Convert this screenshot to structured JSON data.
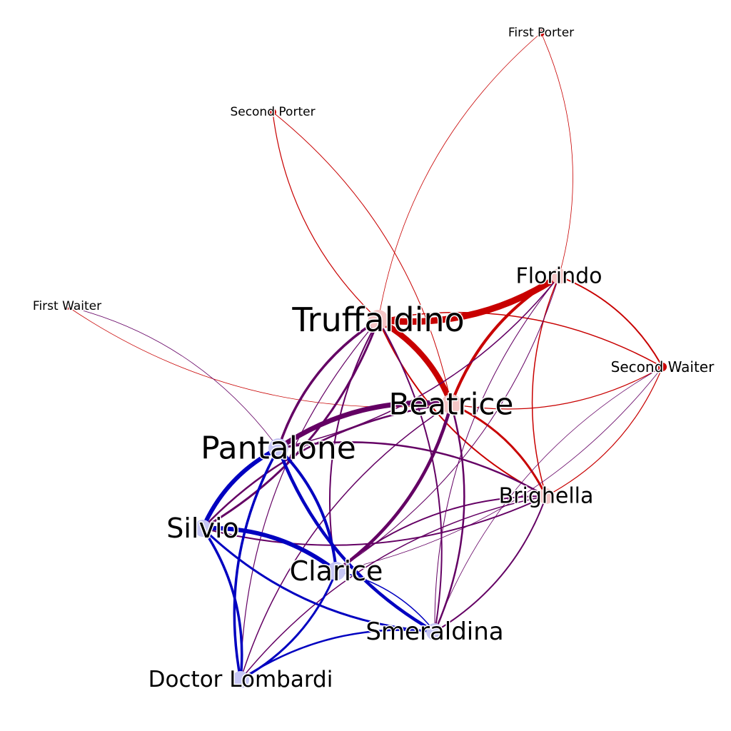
{
  "colors": {
    "red": "#c80000",
    "blue": "#0000c0",
    "purple": "#640064",
    "node_red": "#f4c6c6",
    "node_blue": "#c6c6f4",
    "node_mixed": "#dcc6e8"
  },
  "nodes": [
    {
      "id": "truffaldino",
      "label": "Truffaldino",
      "color": "node_red"
    },
    {
      "id": "beatrice",
      "label": "Beatrice",
      "color": "node_red"
    },
    {
      "id": "pantalone",
      "label": "Pantalone",
      "color": "node_blue"
    },
    {
      "id": "florindo",
      "label": "Florindo",
      "color": "node_red"
    },
    {
      "id": "brighella",
      "label": "Brighella",
      "color": "node_red"
    },
    {
      "id": "silvio",
      "label": "Silvio",
      "color": "node_blue"
    },
    {
      "id": "clarice",
      "label": "Clarice",
      "color": "node_blue"
    },
    {
      "id": "smeraldina",
      "label": "Smeraldina",
      "color": "node_blue"
    },
    {
      "id": "lombardi",
      "label": "Doctor Lombardi",
      "color": "node_blue"
    },
    {
      "id": "first_porter",
      "label": "First Porter",
      "color": "red"
    },
    {
      "id": "second_porter",
      "label": "Second Porter",
      "color": "red"
    },
    {
      "id": "first_waiter",
      "label": "First Waiter",
      "color": "red"
    },
    {
      "id": "second_waiter",
      "label": "Second Waiter",
      "color": "red"
    }
  ],
  "edges": [
    {
      "source": "truffaldino",
      "target": "florindo",
      "color": "red",
      "weight": 9
    },
    {
      "source": "truffaldino",
      "target": "beatrice",
      "color": "red",
      "weight": 8
    },
    {
      "source": "florindo",
      "target": "beatrice",
      "color": "red",
      "weight": 4
    },
    {
      "source": "florindo",
      "target": "second_waiter",
      "color": "red",
      "weight": 2
    },
    {
      "source": "florindo",
      "target": "brighella",
      "color": "red",
      "weight": 1.5
    },
    {
      "source": "truffaldino",
      "target": "second_waiter",
      "color": "red",
      "weight": 1.5
    },
    {
      "source": "beatrice",
      "target": "second_waiter",
      "color": "red",
      "weight": 1.2
    },
    {
      "source": "beatrice",
      "target": "brighella",
      "color": "red",
      "weight": 3
    },
    {
      "source": "truffaldino",
      "target": "brighella",
      "color": "red",
      "weight": 2
    },
    {
      "source": "truffaldino",
      "target": "first_porter",
      "color": "red",
      "weight": 0.8
    },
    {
      "source": "florindo",
      "target": "first_porter",
      "color": "red",
      "weight": 0.8
    },
    {
      "source": "truffaldino",
      "target": "second_porter",
      "color": "red",
      "weight": 1.2
    },
    {
      "source": "beatrice",
      "target": "second_porter",
      "color": "red",
      "weight": 1
    },
    {
      "source": "beatrice",
      "target": "first_waiter",
      "color": "red",
      "weight": 0.8
    },
    {
      "source": "brighella",
      "target": "second_waiter",
      "color": "red",
      "weight": 1.2
    },
    {
      "source": "pantalone",
      "target": "beatrice",
      "color": "purple",
      "weight": 7
    },
    {
      "source": "truffaldino",
      "target": "pantalone",
      "color": "purple",
      "weight": 3.5
    },
    {
      "source": "truffaldino",
      "target": "silvio",
      "color": "purple",
      "weight": 3
    },
    {
      "source": "truffaldino",
      "target": "clarice",
      "color": "purple",
      "weight": 2
    },
    {
      "source": "truffaldino",
      "target": "smeraldina",
      "color": "purple",
      "weight": 2
    },
    {
      "source": "truffaldino",
      "target": "lombardi",
      "color": "purple",
      "weight": 1.2
    },
    {
      "source": "beatrice",
      "target": "clarice",
      "color": "purple",
      "weight": 4.5
    },
    {
      "source": "beatrice",
      "target": "silvio",
      "color": "purple",
      "weight": 2.5
    },
    {
      "source": "beatrice",
      "target": "smeraldina",
      "color": "purple",
      "weight": 2.5
    },
    {
      "source": "beatrice",
      "target": "lombardi",
      "color": "purple",
      "weight": 1.5
    },
    {
      "source": "florindo",
      "target": "pantalone",
      "color": "purple",
      "weight": 1.5
    },
    {
      "source": "florindo",
      "target": "smeraldina",
      "color": "purple",
      "weight": 1
    },
    {
      "source": "florindo",
      "target": "clarice",
      "color": "purple",
      "weight": 1
    },
    {
      "source": "brighella",
      "target": "pantalone",
      "color": "purple",
      "weight": 2.5
    },
    {
      "source": "brighella",
      "target": "silvio",
      "color": "purple",
      "weight": 2
    },
    {
      "source": "brighella",
      "target": "clarice",
      "color": "purple",
      "weight": 2
    },
    {
      "source": "brighella",
      "target": "smeraldina",
      "color": "purple",
      "weight": 2
    },
    {
      "source": "brighella",
      "target": "lombardi",
      "color": "purple",
      "weight": 1.5
    },
    {
      "source": "second_waiter",
      "target": "clarice",
      "color": "purple",
      "weight": 0.8
    },
    {
      "source": "second_waiter",
      "target": "smeraldina",
      "color": "purple",
      "weight": 0.8
    },
    {
      "source": "first_waiter",
      "target": "pantalone",
      "color": "purple",
      "weight": 0.8
    },
    {
      "source": "pantalone",
      "target": "silvio",
      "color": "blue",
      "weight": 6
    },
    {
      "source": "pantalone",
      "target": "clarice",
      "color": "blue",
      "weight": 4
    },
    {
      "source": "pantalone",
      "target": "smeraldina",
      "color": "blue",
      "weight": 4.5
    },
    {
      "source": "silvio",
      "target": "clarice",
      "color": "blue",
      "weight": 6
    },
    {
      "source": "silvio",
      "target": "smeraldina",
      "color": "blue",
      "weight": 3
    },
    {
      "source": "silvio",
      "target": "lombardi",
      "color": "blue",
      "weight": 3.5
    },
    {
      "source": "pantalone",
      "target": "lombardi",
      "color": "blue",
      "weight": 3.5
    },
    {
      "source": "clarice",
      "target": "lombardi",
      "color": "blue",
      "weight": 3
    },
    {
      "source": "smeraldina",
      "target": "lombardi",
      "color": "blue",
      "weight": 2.5
    },
    {
      "source": "clarice",
      "target": "smeraldina",
      "color": "blue",
      "weight": 1.5
    }
  ]
}
